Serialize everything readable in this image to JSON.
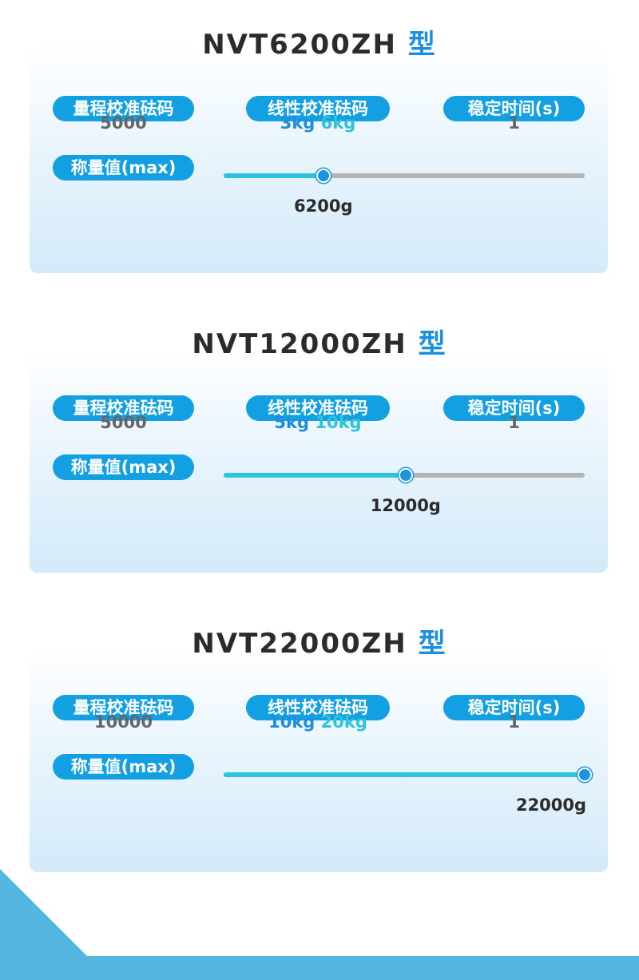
{
  "labels": {
    "range_weight": "量程校准砝码",
    "linear_weight": "线性校准砝码",
    "stable_time": "稳定时间(s)",
    "max_capacity": "称量值(max)"
  },
  "colors": {
    "pill": "#12a0e3",
    "primary": "#1d8ddf",
    "secondary": "#2ec3dd",
    "track": "#b4b4b4",
    "decor": "#55b6e0"
  },
  "models": [
    {
      "name": "NVT6200ZH",
      "suffix": "型",
      "range_weight": "5000",
      "linear_1": "3kg",
      "linear_2": "6kg",
      "stable_time": "1",
      "max": "6200g",
      "slider_level": 0.276
    },
    {
      "name": "NVT12000ZH",
      "suffix": "型",
      "range_weight": "5000",
      "linear_1": "5kg",
      "linear_2": "10kg",
      "stable_time": "1",
      "max": "12000g",
      "slider_level": 0.504
    },
    {
      "name": "NVT22000ZH",
      "suffix": "型",
      "range_weight": "10000",
      "linear_1": "10kg",
      "linear_2": "20kg",
      "stable_time": "1",
      "max": "22000g",
      "slider_level": 1.0
    }
  ]
}
